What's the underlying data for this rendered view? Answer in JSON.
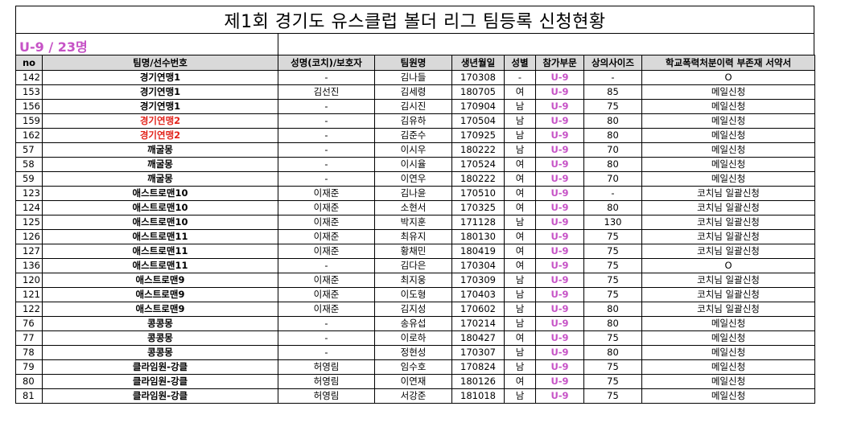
{
  "title": "제1회 경기도 유스클럽 볼더 리그 팀등록 신청현황",
  "subtitle": "U-9 / 23명",
  "colors": {
    "division": "#c652c6",
    "highlight_team": "#e2231a",
    "header_bg": "#d9d9d9"
  },
  "headers": [
    "no",
    "팀명/선수번호",
    "성명(코치)/보호자",
    "팀원명",
    "생년월일",
    "성별",
    "참가부문",
    "상의사이즈",
    "학교폭력처분이력 부존재 서약서"
  ],
  "rows": [
    {
      "no": "142",
      "team": "경기연맹1",
      "coach": "-",
      "member": "김나들",
      "birth": "170308",
      "gender": "-",
      "division": "U-9",
      "size": "-",
      "pledge": "O",
      "highlight": false
    },
    {
      "no": "153",
      "team": "경기연맹1",
      "coach": "김선진",
      "member": "김세령",
      "birth": "180705",
      "gender": "여",
      "division": "U-9",
      "size": "85",
      "pledge": "메일신청",
      "highlight": false
    },
    {
      "no": "156",
      "team": "경기연맹1",
      "coach": "-",
      "member": "김시진",
      "birth": "170904",
      "gender": "남",
      "division": "U-9",
      "size": "75",
      "pledge": "메일신청",
      "highlight": false
    },
    {
      "no": "159",
      "team": "경기연맹2",
      "coach": "-",
      "member": "김유하",
      "birth": "170504",
      "gender": "남",
      "division": "U-9",
      "size": "80",
      "pledge": "메일신청",
      "highlight": true
    },
    {
      "no": "162",
      "team": "경기연맹2",
      "coach": "-",
      "member": "김준수",
      "birth": "170925",
      "gender": "남",
      "division": "U-9",
      "size": "80",
      "pledge": "메일신청",
      "highlight": true
    },
    {
      "no": "57",
      "team": "깨굴몽",
      "coach": "-",
      "member": "이시우",
      "birth": "180222",
      "gender": "남",
      "division": "U-9",
      "size": "70",
      "pledge": "메일신청",
      "highlight": false
    },
    {
      "no": "58",
      "team": "깨굴몽",
      "coach": "-",
      "member": "이시율",
      "birth": "170524",
      "gender": "여",
      "division": "U-9",
      "size": "80",
      "pledge": "메일신청",
      "highlight": false
    },
    {
      "no": "59",
      "team": "깨굴몽",
      "coach": "-",
      "member": "이연우",
      "birth": "180222",
      "gender": "여",
      "division": "U-9",
      "size": "70",
      "pledge": "메일신청",
      "highlight": false
    },
    {
      "no": "123",
      "team": "애스트로맨10",
      "coach": "이재준",
      "member": "김나윤",
      "birth": "170510",
      "gender": "여",
      "division": "U-9",
      "size": "-",
      "pledge": "코치님 일괄신청",
      "highlight": false
    },
    {
      "no": "124",
      "team": "애스트로맨10",
      "coach": "이재준",
      "member": "소현서",
      "birth": "170325",
      "gender": "여",
      "division": "U-9",
      "size": "80",
      "pledge": "코치님 일괄신청",
      "highlight": false
    },
    {
      "no": "125",
      "team": "애스트로맨10",
      "coach": "이재준",
      "member": "박지훈",
      "birth": "171128",
      "gender": "남",
      "division": "U-9",
      "size": "130",
      "pledge": "코치님 일괄신청",
      "highlight": false
    },
    {
      "no": "126",
      "team": "애스트로맨11",
      "coach": "이재준",
      "member": "최유지",
      "birth": "180130",
      "gender": "여",
      "division": "U-9",
      "size": "75",
      "pledge": "코치님 일괄신청",
      "highlight": false
    },
    {
      "no": "127",
      "team": "애스트로맨11",
      "coach": "이재준",
      "member": "황채민",
      "birth": "180419",
      "gender": "여",
      "division": "U-9",
      "size": "75",
      "pledge": "코치님 일괄신청",
      "highlight": false
    },
    {
      "no": "136",
      "team": "애스트로맨11",
      "coach": "-",
      "member": "김다은",
      "birth": "170304",
      "gender": "여",
      "division": "U-9",
      "size": "75",
      "pledge": "O",
      "highlight": false
    },
    {
      "no": "120",
      "team": "애스트로맨9",
      "coach": "이재준",
      "member": "최지웅",
      "birth": "170309",
      "gender": "남",
      "division": "U-9",
      "size": "75",
      "pledge": "코치님 일괄신청",
      "highlight": false
    },
    {
      "no": "121",
      "team": "애스트로맨9",
      "coach": "이재준",
      "member": "이도형",
      "birth": "170403",
      "gender": "남",
      "division": "U-9",
      "size": "75",
      "pledge": "코치님 일괄신청",
      "highlight": false
    },
    {
      "no": "122",
      "team": "애스트로맨9",
      "coach": "이재준",
      "member": "김지성",
      "birth": "170602",
      "gender": "남",
      "division": "U-9",
      "size": "80",
      "pledge": "코치님 일괄신청",
      "highlight": false
    },
    {
      "no": "76",
      "team": "콩콩몽",
      "coach": "-",
      "member": "송유섭",
      "birth": "170214",
      "gender": "남",
      "division": "U-9",
      "size": "80",
      "pledge": "메일신청",
      "highlight": false
    },
    {
      "no": "77",
      "team": "콩콩몽",
      "coach": "-",
      "member": "이로하",
      "birth": "180427",
      "gender": "여",
      "division": "U-9",
      "size": "75",
      "pledge": "메일신청",
      "highlight": false
    },
    {
      "no": "78",
      "team": "콩콩몽",
      "coach": "-",
      "member": "정현성",
      "birth": "170307",
      "gender": "남",
      "division": "U-9",
      "size": "80",
      "pledge": "메일신청",
      "highlight": false
    },
    {
      "no": "79",
      "team": "클라임원-강클",
      "coach": "허영림",
      "member": "임수호",
      "birth": "170824",
      "gender": "남",
      "division": "U-9",
      "size": "75",
      "pledge": "메일신청",
      "highlight": false
    },
    {
      "no": "80",
      "team": "클라임원-강클",
      "coach": "허영림",
      "member": "이연재",
      "birth": "180126",
      "gender": "여",
      "division": "U-9",
      "size": "75",
      "pledge": "메일신청",
      "highlight": false
    },
    {
      "no": "81",
      "team": "클라임원-강클",
      "coach": "허영림",
      "member": "서강준",
      "birth": "181018",
      "gender": "남",
      "division": "U-9",
      "size": "75",
      "pledge": "메일신청",
      "highlight": false
    }
  ]
}
